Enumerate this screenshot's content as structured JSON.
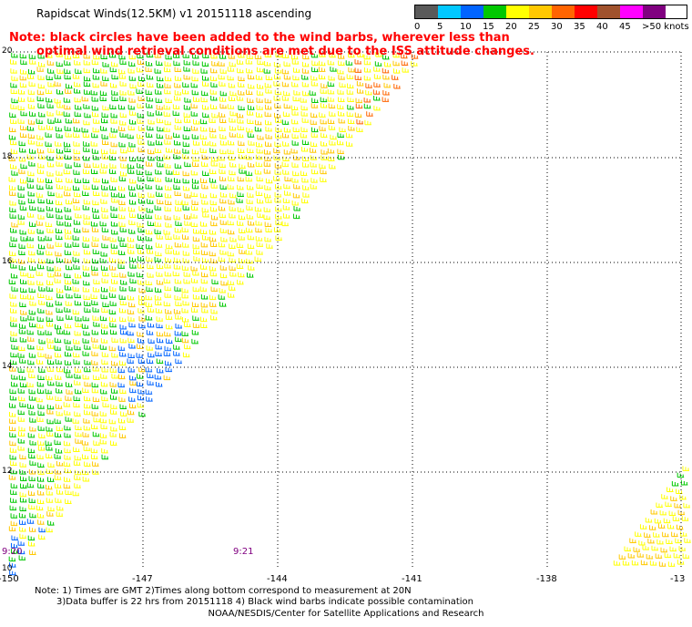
{
  "title": "Rapidscat Winds(12.5KM) v1 20151118 ascending",
  "note_line1": "Note: black circles have been added to the wind barbs, wherever less than",
  "note_line2": "optimal wind retrieval conditions are met due to the ISS attitude changes.",
  "legend": {
    "colors": [
      "#5a5a5a",
      "#00c8ff",
      "#0064ff",
      "#00c800",
      "#ffff00",
      "#ffc800",
      "#ff6400",
      "#ff0000",
      "#a0522d",
      "#ff00ff",
      "#800080"
    ],
    "labels": [
      "0",
      "5",
      "10",
      "15",
      "20",
      "25",
      "30",
      "35",
      "40",
      "45",
      ">50 knots"
    ]
  },
  "x_labels": [
    "-150",
    "-147",
    "-144",
    "-141",
    "-138",
    "-13"
  ],
  "y_labels": [
    "20",
    "18",
    "16",
    "14",
    "12",
    "10"
  ],
  "time_labels": [
    "9:20",
    "9:21"
  ],
  "footer_line1": "Note: 1) Times are GMT 2)Times along bottom correspond to measurement at 20N",
  "footer_line2": "3)Data buffer is 22 hrs from 20151118 4) Black wind barbs indicate possible contamination",
  "footer_line3": "NOAA/NESDIS/Center for Satellite Applications and Research"
}
